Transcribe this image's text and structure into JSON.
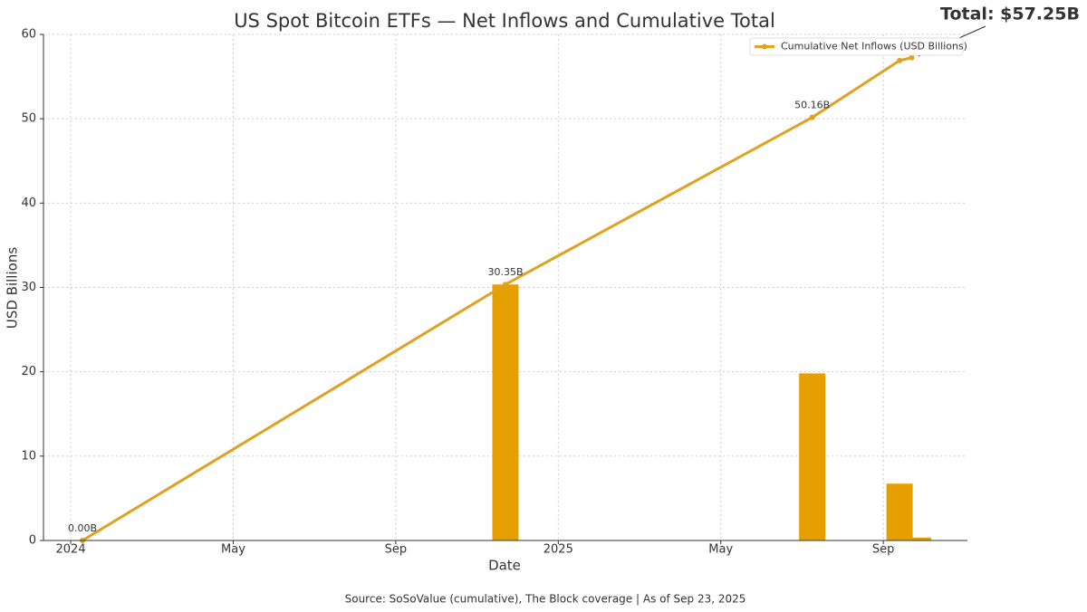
{
  "chart_data": {
    "type": "line",
    "title": "US Spot Bitcoin ETFs — Net Inflows and Cumulative Total",
    "x_label": "Date",
    "y_label": "USD Billions",
    "source": "Source: SoSoValue (cumulative), The Block coverage | As of Sep 23, 2025",
    "annotation": "Total: $57.25B",
    "xlim": [
      -0.67,
      22.07
    ],
    "xticks": [
      {
        "value": 0,
        "label": "2024"
      },
      {
        "value": 4,
        "label": "May"
      },
      {
        "value": 8,
        "label": "Sep"
      },
      {
        "value": 12,
        "label": "2025"
      },
      {
        "value": 16,
        "label": "May"
      },
      {
        "value": 20,
        "label": "Sep"
      }
    ],
    "ylim": [
      0,
      60
    ],
    "yticks": [
      0,
      10,
      20,
      30,
      40,
      50,
      60
    ],
    "grid": true,
    "legend": "upper right",
    "series": [
      {
        "name": "Cumulative Net Inflows (USD Billions)",
        "color": "#e0a020",
        "x": [
          0.29,
          10.7,
          18.25,
          20.4,
          20.7
        ],
        "values": [
          0,
          30.35,
          50.16,
          56.9,
          57.25
        ],
        "value_labels": [
          "0.00B",
          "30.35B",
          "50.16B",
          null,
          null
        ]
      },
      {
        "type": "bar",
        "color": "#e5a000",
        "x": [
          10.7,
          18.25,
          20.4,
          20.85
        ],
        "values": [
          30.35,
          19.81,
          6.74,
          0.35
        ]
      }
    ]
  }
}
